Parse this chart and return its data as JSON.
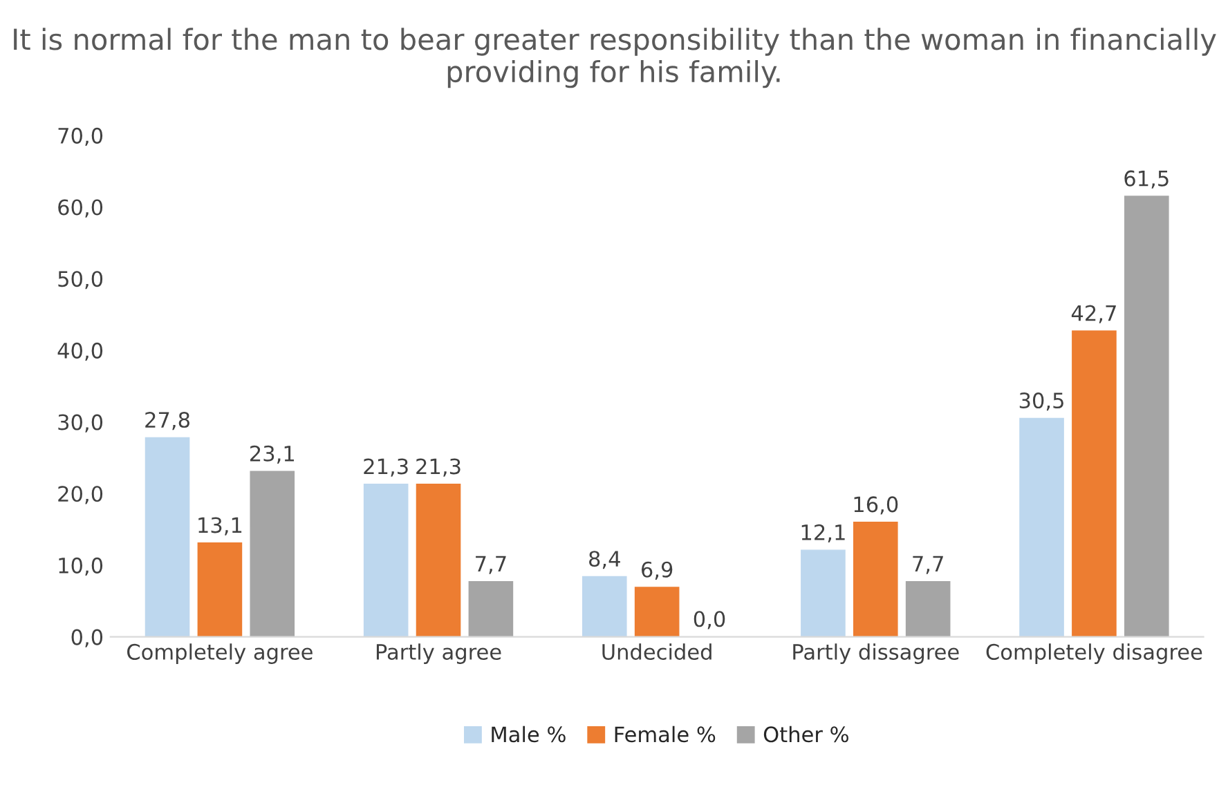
{
  "chart_data": {
    "type": "bar",
    "title": "It is normal for the man to bear greater responsibility than the woman in financially providing for his family.",
    "categories": [
      "Completely agree",
      "Partly agree",
      "Undecided",
      "Partly dissagree",
      "Completely disagree"
    ],
    "series": [
      {
        "name": "Male %",
        "color": "#bdd7ee",
        "values": [
          27.8,
          21.3,
          8.4,
          12.1,
          30.5
        ],
        "value_labels": [
          "27,8",
          "21,3",
          "8,4",
          "12,1",
          "30,5"
        ]
      },
      {
        "name": "Female %",
        "color": "#ed7d31",
        "values": [
          13.1,
          21.3,
          6.9,
          16.0,
          42.7
        ],
        "value_labels": [
          "13,1",
          "21,3",
          "6,9",
          "16,0",
          "42,7"
        ]
      },
      {
        "name": "Other %",
        "color": "#a5a5a5",
        "values": [
          23.1,
          7.7,
          0.0,
          7.7,
          61.5
        ],
        "value_labels": [
          "23,1",
          "7,7",
          "0,0",
          "7,7",
          "61,5"
        ]
      }
    ],
    "ylim": [
      0,
      70
    ],
    "yticks": [
      {
        "value": 0,
        "label": "0,0"
      },
      {
        "value": 10,
        "label": "10,0"
      },
      {
        "value": 20,
        "label": "20,0"
      },
      {
        "value": 30,
        "label": "30,0"
      },
      {
        "value": 40,
        "label": "40,0"
      },
      {
        "value": 50,
        "label": "50,0"
      },
      {
        "value": 60,
        "label": "60,0"
      },
      {
        "value": 70,
        "label": "70,0"
      }
    ],
    "grid": false,
    "legend": "bottom"
  }
}
